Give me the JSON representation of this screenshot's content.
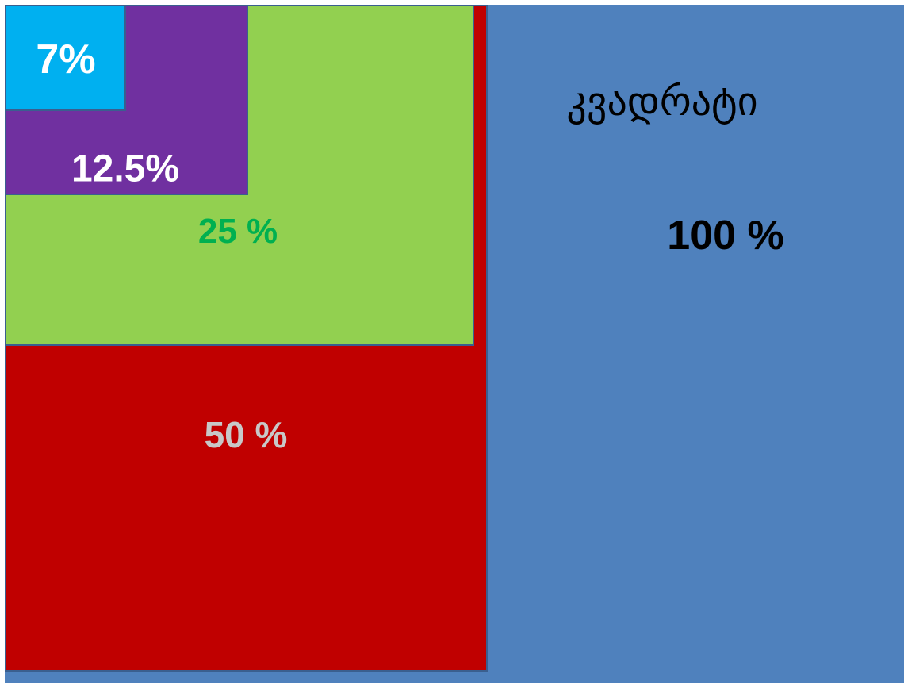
{
  "title": "კვადრატი",
  "boxes": [
    {
      "label": "100 %"
    },
    {
      "label": "50 %"
    },
    {
      "label": "25 %"
    },
    {
      "label": "12.5%"
    },
    {
      "label": "7%"
    }
  ]
}
